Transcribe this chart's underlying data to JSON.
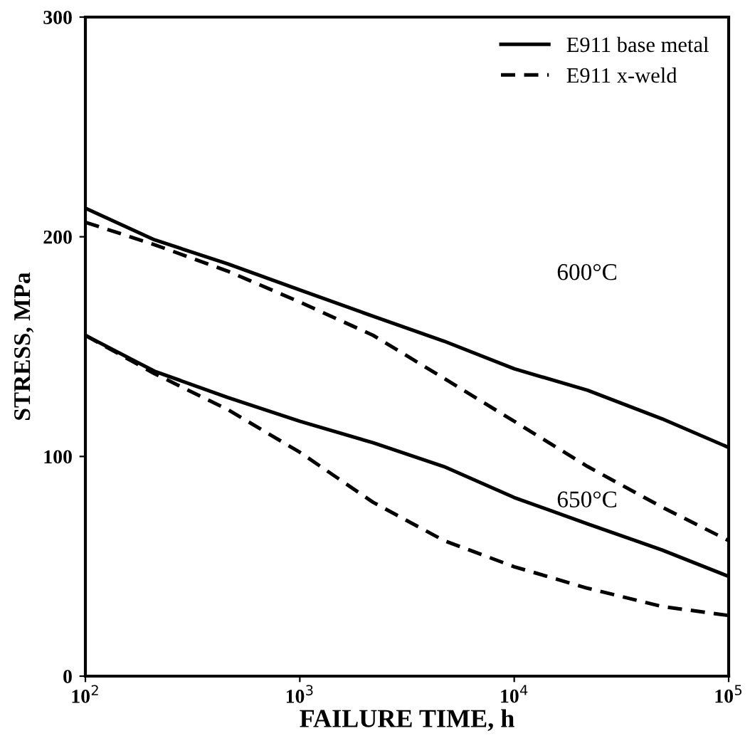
{
  "chart_data": {
    "type": "line",
    "xlabel": "FAILURE TIME, h",
    "ylabel": "STRESS, MPa",
    "log": "x",
    "x": [
      100,
      210,
      460,
      1000,
      2200,
      4700,
      10000,
      22000,
      49000,
      100000
    ],
    "xlim": [
      100,
      100000
    ],
    "xticks": [
      {
        "value": 100,
        "label": "10$^{2}$"
      },
      {
        "value": 1000,
        "label": "10$^{3}$"
      },
      {
        "value": 10000,
        "label": "10$^{4}$"
      },
      {
        "value": 100000,
        "label": "10$^{5}$"
      }
    ],
    "ylim": [
      0,
      300
    ],
    "yticks": [
      0,
      100,
      200,
      300
    ],
    "grid": false,
    "legend": "top right",
    "marker": "none",
    "series": [
      {
        "name": "E911 base metal",
        "color": "#000000",
        "line_style": "solid",
        "values": [
          213,
          198.6,
          187.7,
          175.8,
          163.8,
          152.5,
          139.9,
          130.1,
          117.1,
          104.1
        ]
      },
      {
        "name": "E911 x-weld",
        "color": "#000000",
        "line_style": "dashed",
        "values": [
          206.6,
          196.4,
          184.4,
          170.3,
          155.1,
          135.6,
          116.0,
          95.4,
          76.9,
          61.7
        ]
      },
      {
        "color": "#000000",
        "line_style": "solid",
        "values": [
          155.1,
          138.8,
          126.9,
          116.0,
          106.2,
          95.4,
          81.3,
          69.3,
          57.4,
          45.4
        ]
      },
      {
        "color": "#000000",
        "line_style": "dashed",
        "values": [
          155.1,
          137.7,
          121.4,
          101.9,
          79.1,
          61.7,
          49.8,
          40.0,
          31.7,
          27.6
        ]
      }
    ],
    "annotations": [
      "600°C",
      "650°C"
    ]
  }
}
